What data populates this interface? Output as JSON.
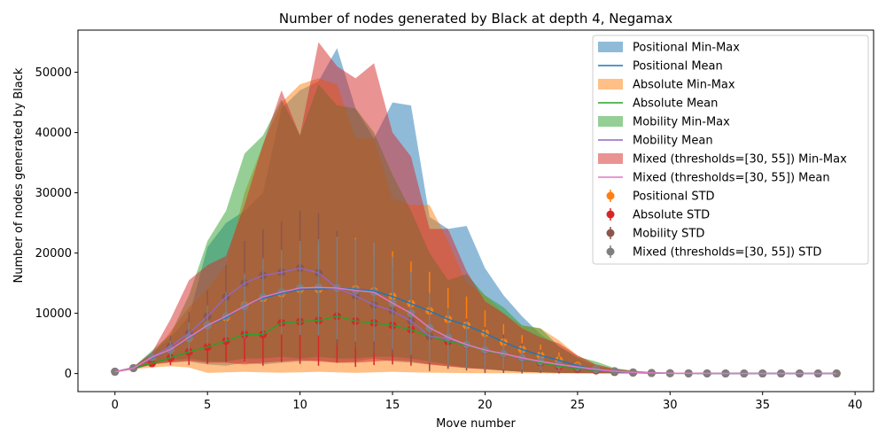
{
  "chart_data": {
    "type": "line",
    "title": "Number of nodes generated by Black at depth 4, Negamax",
    "xlabel": "Move number",
    "ylabel": "Number of nodes generated by Black",
    "xlim": [
      -2,
      41
    ],
    "ylim": [
      -3000,
      57000
    ],
    "xticks": [
      0,
      5,
      10,
      15,
      20,
      25,
      30,
      35,
      40
    ],
    "yticks": [
      0,
      10000,
      20000,
      30000,
      40000,
      50000
    ],
    "legend_position": "top-right",
    "grid": false,
    "x": [
      0,
      1,
      2,
      3,
      4,
      5,
      6,
      7,
      8,
      9,
      10,
      11,
      12,
      13,
      14,
      15,
      16,
      17,
      18,
      19,
      20,
      21,
      22,
      23,
      24,
      25,
      26,
      27,
      28,
      29,
      30,
      31,
      32,
      33,
      34,
      35,
      36,
      37,
      38,
      39
    ],
    "series": [
      {
        "name": "Positional",
        "min_max_label": "Positional Min-Max",
        "mean_label": "Positional Mean",
        "std_label": "Positional STD",
        "band_color": "#1f77b4",
        "mean_color": "#1f77b4",
        "std_color": "#ff7f0e",
        "mean": [
          300,
          900,
          2600,
          4000,
          5900,
          8000,
          9300,
          11300,
          12500,
          13300,
          14000,
          14000,
          14200,
          14000,
          13700,
          12800,
          11600,
          10400,
          9000,
          8000,
          6700,
          5200,
          4000,
          3000,
          2200,
          1300,
          700,
          400,
          200,
          100,
          60,
          40,
          30,
          20,
          10,
          10,
          10,
          10,
          10,
          10
        ],
        "std": [
          50,
          150,
          700,
          1500,
          2500,
          3200,
          4000,
          5500,
          6500,
          7000,
          7000,
          7500,
          8500,
          8500,
          8000,
          7500,
          7000,
          6500,
          5200,
          4800,
          3800,
          3000,
          2400,
          1800,
          1300,
          700,
          400,
          250,
          150,
          80,
          40,
          30,
          20,
          10,
          10,
          10,
          10,
          10,
          10,
          10
        ],
        "min": [
          200,
          700,
          1500,
          1800,
          2000,
          1500,
          1300,
          1800,
          1500,
          1800,
          2000,
          2200,
          1800,
          2000,
          2500,
          2000,
          1800,
          1500,
          1200,
          900,
          700,
          500,
          300,
          200,
          100,
          80,
          50,
          30,
          20,
          10,
          10,
          10,
          10,
          10,
          10,
          10,
          10,
          10,
          10,
          10
        ],
        "max": [
          400,
          1100,
          3500,
          6000,
          9500,
          21000,
          25000,
          27000,
          30000,
          44000,
          47000,
          48500,
          54000,
          44000,
          39000,
          45000,
          44500,
          26000,
          24000,
          24500,
          17500,
          13000,
          9500,
          6500,
          4500,
          2500,
          1200,
          600,
          300,
          150,
          80,
          50,
          40,
          30,
          20,
          20,
          20,
          20,
          20,
          20
        ]
      },
      {
        "name": "Absolute",
        "min_max_label": "Absolute Min-Max",
        "mean_label": "Absolute Mean",
        "std_label": "Absolute STD",
        "band_color": "#ff7f0e",
        "mean_color": "#2ca02c",
        "std_color": "#d62728",
        "mean": [
          300,
          900,
          1700,
          2600,
          3600,
          4400,
          5400,
          6500,
          6500,
          8400,
          8600,
          8800,
          9500,
          8700,
          8400,
          8000,
          7300,
          6200,
          5300,
          4700,
          3800,
          3200,
          2500,
          1800,
          1200,
          800,
          500,
          250,
          150,
          80,
          50,
          30,
          20,
          10,
          10,
          10,
          10,
          10,
          10,
          10
        ],
        "std": [
          50,
          150,
          400,
          1200,
          2200,
          2800,
          3500,
          4500,
          5200,
          6500,
          7000,
          7500,
          7700,
          7600,
          7000,
          6500,
          6000,
          5200,
          4500,
          3800,
          3200,
          2800,
          2200,
          1600,
          1200,
          700,
          400,
          250,
          150,
          80,
          40,
          30,
          20,
          10,
          10,
          10,
          10,
          10,
          10,
          10
        ],
        "min": [
          200,
          700,
          1000,
          1200,
          1000,
          100,
          200,
          300,
          200,
          150,
          200,
          300,
          200,
          100,
          200,
          300,
          200,
          150,
          100,
          80,
          60,
          50,
          40,
          30,
          20,
          10,
          10,
          10,
          10,
          10,
          10,
          10,
          10,
          10,
          10,
          10,
          10,
          10,
          10,
          10
        ],
        "max": [
          400,
          1100,
          3000,
          7000,
          11000,
          14000,
          18000,
          30000,
          38000,
          45000,
          48000,
          49000,
          48000,
          39000,
          39000,
          29000,
          28000,
          28000,
          22000,
          15000,
          13000,
          10000,
          8000,
          7500,
          5500,
          3000,
          1500,
          800,
          400,
          200,
          100,
          60,
          40,
          30,
          20,
          20,
          20,
          20,
          20,
          20
        ]
      },
      {
        "name": "Mobility",
        "min_max_label": "Mobility Min-Max",
        "mean_label": "Mobility Mean",
        "std_label": "Mobility STD",
        "band_color": "#2ca02c",
        "mean_color": "#9467bd",
        "std_color": "#8c564b",
        "mean": [
          300,
          900,
          2700,
          4500,
          6700,
          9500,
          12700,
          15000,
          16300,
          16800,
          17500,
          16700,
          14200,
          12900,
          11400,
          10400,
          8700,
          6200,
          5800,
          4800,
          3900,
          3300,
          2500,
          2000,
          1500,
          1000,
          600,
          300,
          150,
          80,
          50,
          30,
          20,
          10,
          10,
          10,
          10,
          10,
          10,
          10
        ],
        "std": [
          50,
          150,
          700,
          1800,
          3500,
          4300,
          5300,
          7000,
          7700,
          8500,
          9500,
          10000,
          9500,
          8700,
          8000,
          7300,
          6800,
          5800,
          5000,
          4300,
          3800,
          3200,
          2500,
          1900,
          1300,
          800,
          450,
          250,
          150,
          80,
          40,
          30,
          20,
          10,
          10,
          10,
          10,
          10,
          10,
          10
        ],
        "min": [
          200,
          700,
          1600,
          2200,
          2500,
          2000,
          2000,
          2500,
          2500,
          2800,
          2500,
          2800,
          2500,
          2500,
          2800,
          2800,
          2500,
          2000,
          1500,
          1000,
          800,
          500,
          300,
          200,
          100,
          80,
          50,
          30,
          20,
          10,
          10,
          10,
          10,
          10,
          10,
          10,
          10,
          10,
          10,
          10
        ],
        "max": [
          400,
          1100,
          3800,
          6500,
          13000,
          22000,
          27000,
          36500,
          39500,
          45500,
          39500,
          48000,
          44500,
          44000,
          40000,
          33000,
          27000,
          20000,
          15500,
          16500,
          13000,
          11000,
          8000,
          7500,
          4500,
          2800,
          2000,
          900,
          500,
          250,
          120,
          70,
          40,
          30,
          20,
          20,
          20,
          20,
          20,
          20
        ]
      },
      {
        "name": "Mixed (thresholds=[30, 55])",
        "min_max_label": "Mixed (thresholds=[30, 55]) Min-Max",
        "mean_label": "Mixed (thresholds=[30, 55]) Mean",
        "std_label": "Mixed (thresholds=[30, 55]) STD",
        "band_color": "#d62728",
        "mean_color": "#e377c2",
        "std_color": "#7f7f7f",
        "mean": [
          300,
          900,
          2700,
          4000,
          6000,
          8000,
          9500,
          11200,
          12700,
          13500,
          14200,
          14300,
          14200,
          13800,
          13500,
          11700,
          10000,
          7600,
          6000,
          4800,
          3900,
          3300,
          2600,
          2000,
          1500,
          1100,
          700,
          400,
          200,
          100,
          60,
          40,
          30,
          20,
          10,
          10,
          10,
          10,
          10,
          10
        ],
        "std": [
          50,
          150,
          600,
          1400,
          2500,
          3300,
          4000,
          5300,
          6400,
          7000,
          7800,
          8000,
          8500,
          8500,
          8200,
          7700,
          6900,
          5800,
          4700,
          3900,
          3200,
          2600,
          2000,
          1500,
          1100,
          700,
          400,
          250,
          150,
          80,
          40,
          30,
          20,
          10,
          10,
          10,
          10,
          10,
          10,
          10
        ],
        "min": [
          200,
          700,
          1500,
          1900,
          2100,
          1800,
          1800,
          1500,
          1800,
          2000,
          2200,
          2000,
          1800,
          1800,
          2000,
          2200,
          2000,
          1500,
          1200,
          900,
          700,
          500,
          300,
          200,
          100,
          80,
          50,
          30,
          20,
          10,
          10,
          10,
          10,
          10,
          10,
          10,
          10,
          10,
          10,
          10
        ],
        "max": [
          400,
          1100,
          3500,
          9000,
          15500,
          18000,
          19500,
          28000,
          38000,
          47000,
          39500,
          55000,
          51000,
          49000,
          51500,
          40000,
          36000,
          24000,
          24000,
          17000,
          12000,
          10000,
          7500,
          6000,
          5000,
          3000,
          1500,
          800,
          400,
          200,
          100,
          60,
          40,
          30,
          20,
          20,
          20,
          20,
          20,
          20
        ]
      }
    ]
  }
}
